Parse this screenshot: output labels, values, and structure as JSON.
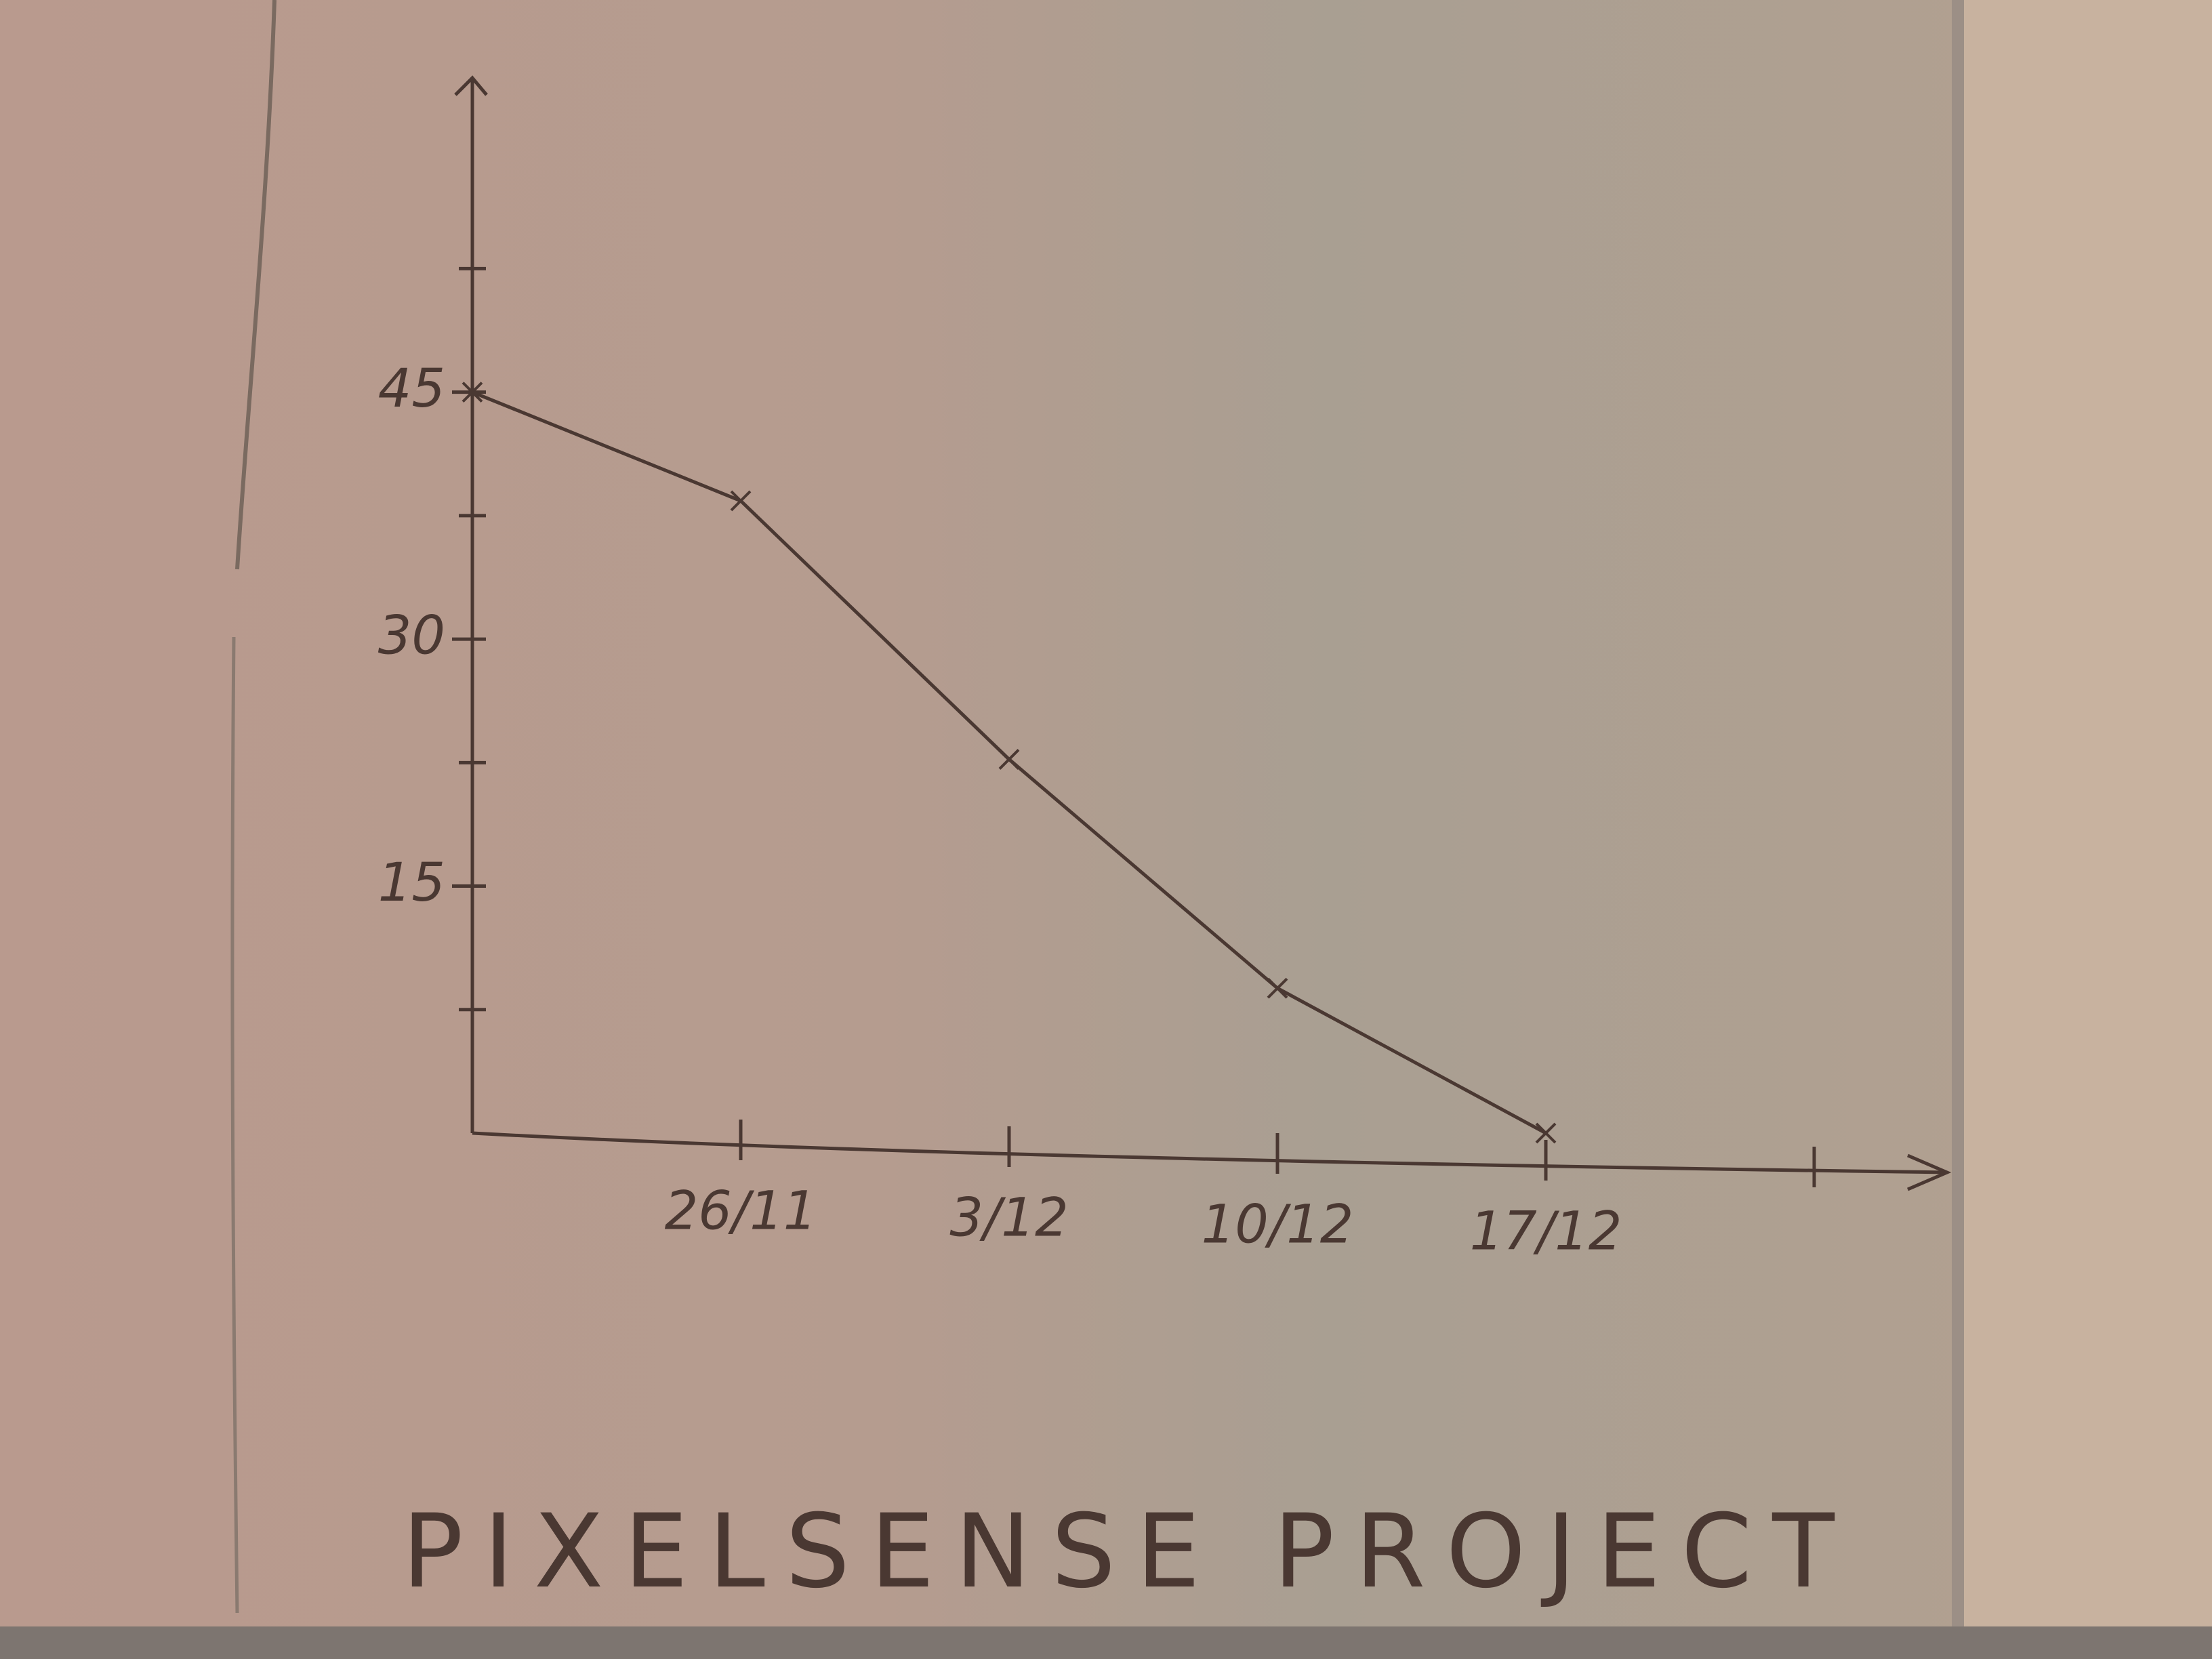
{
  "chart_data": {
    "type": "line",
    "title": "PIXELSENSE PROJECT",
    "categories": [
      null,
      "26/11",
      "3/12",
      "10/12",
      "17/12",
      null
    ],
    "values": [
      45,
      38.4,
      22.7,
      8.8,
      0,
      null
    ],
    "color": "#4a3832",
    "ylim": [
      0,
      64
    ],
    "yticks": [
      15,
      30,
      45
    ],
    "minor_yticks": [
      7.5,
      22.5,
      37.5,
      52.5
    ]
  }
}
